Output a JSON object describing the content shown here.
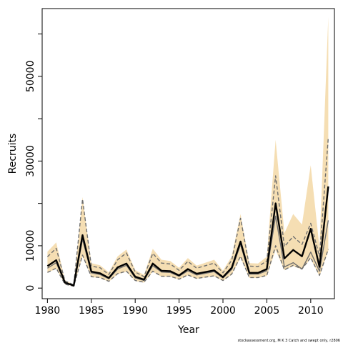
{
  "chart_data": {
    "type": "line",
    "xlabel": "Year",
    "ylabel": "Recruits",
    "x_ticks": [
      1980,
      1985,
      1990,
      1995,
      2000,
      2005,
      2010
    ],
    "y_ticks": [
      0,
      10000,
      30000,
      50000
    ],
    "y_minor_ticks": [
      20000,
      40000,
      60000
    ],
    "xlim": [
      1979.4,
      2012.7
    ],
    "ylim": [
      -2500,
      66000
    ],
    "x": [
      1980,
      1981,
      1982,
      1983,
      1984,
      1985,
      1986,
      1987,
      1988,
      1989,
      1990,
      1991,
      1992,
      1993,
      1994,
      1995,
      1996,
      1997,
      1998,
      1999,
      2000,
      2001,
      2002,
      2003,
      2004,
      2005,
      2006,
      2007,
      2008,
      2009,
      2010,
      2011,
      2012
    ],
    "series": [
      {
        "role": "estimate",
        "color": "#000000",
        "values": [
          5200,
          6600,
          1300,
          600,
          12500,
          3900,
          3500,
          2400,
          4900,
          5800,
          2700,
          2000,
          5800,
          4100,
          4000,
          3000,
          4500,
          3400,
          3800,
          4200,
          2600,
          4800,
          11000,
          3600,
          3600,
          4500,
          20000,
          7000,
          9000,
          7500,
          14000,
          5000,
          24000
        ]
      },
      {
        "role": "lower-shade",
        "color": "#f5deb3",
        "values": [
          3600,
          4600,
          900,
          400,
          7500,
          2600,
          2400,
          1500,
          3300,
          3900,
          1700,
          1300,
          3900,
          2700,
          2700,
          2000,
          3000,
          2200,
          2500,
          2800,
          1700,
          3200,
          7200,
          2400,
          2400,
          2900,
          9000,
          4200,
          5200,
          4400,
          7000,
          2800,
          8800
        ]
      },
      {
        "role": "upper-shade",
        "color": "#f5deb3",
        "values": [
          8600,
          10800,
          1900,
          800,
          21500,
          5900,
          5400,
          3700,
          7500,
          9100,
          4300,
          3100,
          9300,
          6700,
          6400,
          4800,
          7100,
          5300,
          6000,
          6700,
          4100,
          7500,
          17500,
          5900,
          5800,
          7400,
          35000,
          13000,
          17500,
          15000,
          29000,
          9500,
          64000
        ]
      },
      {
        "role": "lower-dashed",
        "color": "#6e6e6e",
        "values": [
          3700,
          4700,
          900,
          450,
          7800,
          2700,
          2500,
          1600,
          3400,
          4000,
          1800,
          1400,
          4000,
          2800,
          2800,
          2100,
          3100,
          2300,
          2600,
          2900,
          1800,
          3300,
          7500,
          2500,
          2500,
          3000,
          10000,
          4300,
          5400,
          4500,
          7200,
          3000,
          9200
        ]
      },
      {
        "role": "upper-dashed",
        "color": "#6e6e6e",
        "values": [
          7400,
          9400,
          1700,
          750,
          21000,
          5200,
          4800,
          3200,
          6700,
          8300,
          3800,
          2700,
          8200,
          5900,
          5700,
          4200,
          6300,
          4700,
          5300,
          5900,
          3600,
          6600,
          16500,
          5200,
          5100,
          6400,
          26500,
          9800,
          12200,
          10300,
          15300,
          7500,
          35500
        ]
      },
      {
        "role": "median",
        "color": "#6e6e6e",
        "values": [
          4700,
          6000,
          1200,
          580,
          11500,
          3600,
          3200,
          2200,
          4500,
          5400,
          2400,
          1800,
          5300,
          3800,
          3700,
          2800,
          4100,
          3100,
          3500,
          3900,
          2400,
          4400,
          10300,
          3300,
          3300,
          4100,
          17000,
          5000,
          6000,
          4500,
          8500,
          4000,
          16000
        ]
      }
    ]
  },
  "footnote": "stockassessment.org, M K 3 Catch and swept only, r2806"
}
